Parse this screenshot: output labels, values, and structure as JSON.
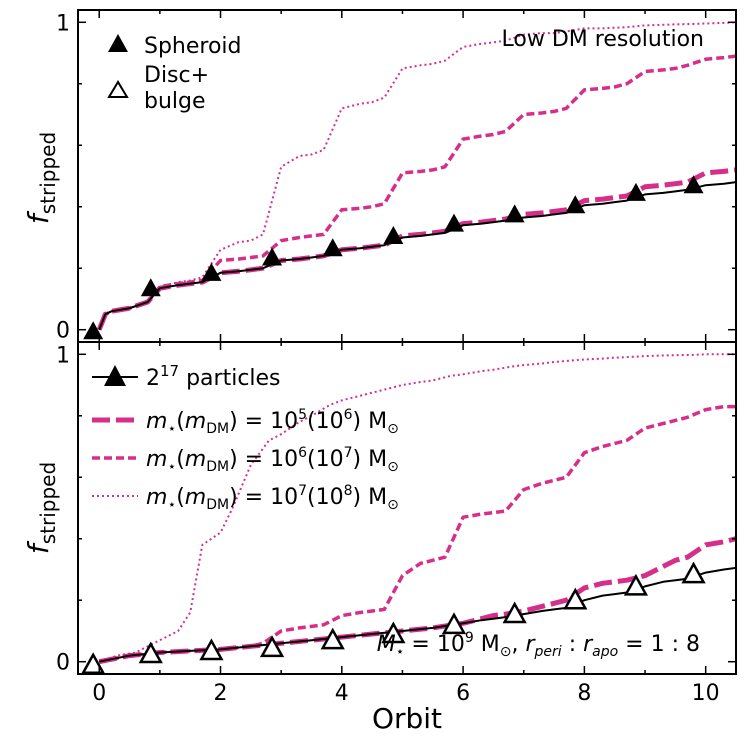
{
  "colors": {
    "magenta": "#d62f8a",
    "black": "#000000"
  },
  "chart_data": [
    {
      "type": "line",
      "panel": "top",
      "ylabel": "f",
      "ylabel_sub": "stripped",
      "xlim": [
        -0.35,
        10.5
      ],
      "ylim": [
        -0.04,
        1.04
      ],
      "yticks": [
        {
          "v": 0,
          "label": "0"
        },
        {
          "v": 1,
          "label": "1"
        }
      ],
      "yminor": [
        0.2,
        0.4,
        0.6,
        0.8
      ],
      "annotation": "Low DM resolution",
      "legend_spheroid": "Spheroid",
      "legend_disc_line1": "Disc+",
      "legend_disc_line2": "bulge",
      "series": [
        {
          "name": "dotted_1e7",
          "style": "dotted",
          "x": [
            0.0,
            0.1,
            0.2,
            0.5,
            0.8,
            1.0,
            1.3,
            1.5,
            1.7,
            2.0,
            2.3,
            2.5,
            2.7,
            3.0,
            3.3,
            3.5,
            3.7,
            4.0,
            4.3,
            4.5,
            4.7,
            5.0,
            5.3,
            5.5,
            5.7,
            6.0,
            6.3,
            6.5,
            6.7,
            7.0,
            7.3,
            7.5,
            7.7,
            8.0,
            8.3,
            8.5,
            8.7,
            9.0,
            9.3,
            9.5,
            9.7,
            10.0,
            10.3,
            10.5
          ],
          "y": [
            0.0,
            0.05,
            0.06,
            0.07,
            0.09,
            0.14,
            0.155,
            0.16,
            0.17,
            0.26,
            0.285,
            0.29,
            0.31,
            0.53,
            0.565,
            0.57,
            0.585,
            0.72,
            0.735,
            0.74,
            0.755,
            0.85,
            0.86,
            0.865,
            0.875,
            0.92,
            0.93,
            0.935,
            0.94,
            0.96,
            0.965,
            0.965,
            0.97,
            0.98,
            0.98,
            0.982,
            0.984,
            0.99,
            0.992,
            0.993,
            0.994,
            0.996,
            0.998,
            1.0
          ]
        },
        {
          "name": "dashed_1e6",
          "style": "dashed",
          "x": [
            0.0,
            0.1,
            0.2,
            0.5,
            0.8,
            1.0,
            1.3,
            1.5,
            1.7,
            2.0,
            2.3,
            2.5,
            2.7,
            3.0,
            3.3,
            3.5,
            3.7,
            4.0,
            4.3,
            4.5,
            4.7,
            5.0,
            5.3,
            5.5,
            5.7,
            6.0,
            6.3,
            6.5,
            6.7,
            7.0,
            7.3,
            7.5,
            7.7,
            8.0,
            8.3,
            8.5,
            8.7,
            9.0,
            9.3,
            9.5,
            9.7,
            10.0,
            10.3,
            10.5
          ],
          "y": [
            0.0,
            0.05,
            0.06,
            0.07,
            0.09,
            0.14,
            0.15,
            0.155,
            0.16,
            0.225,
            0.23,
            0.235,
            0.24,
            0.29,
            0.3,
            0.305,
            0.31,
            0.39,
            0.395,
            0.4,
            0.41,
            0.51,
            0.515,
            0.52,
            0.53,
            0.62,
            0.63,
            0.635,
            0.645,
            0.7,
            0.705,
            0.71,
            0.72,
            0.78,
            0.785,
            0.79,
            0.8,
            0.84,
            0.845,
            0.85,
            0.86,
            0.88,
            0.885,
            0.89
          ]
        },
        {
          "name": "longdash_1e5",
          "style": "longdash",
          "x": [
            0.0,
            0.1,
            0.2,
            0.5,
            0.8,
            1.0,
            1.3,
            1.5,
            1.7,
            2.0,
            2.3,
            2.5,
            2.7,
            3.0,
            3.3,
            3.5,
            3.7,
            4.0,
            4.3,
            4.5,
            4.7,
            5.0,
            5.3,
            5.5,
            5.7,
            6.0,
            6.3,
            6.5,
            6.7,
            7.0,
            7.3,
            7.5,
            7.7,
            8.0,
            8.3,
            8.5,
            8.7,
            9.0,
            9.3,
            9.5,
            9.7,
            10.0,
            10.3,
            10.5
          ],
          "y": [
            0.0,
            0.05,
            0.06,
            0.07,
            0.09,
            0.135,
            0.145,
            0.15,
            0.155,
            0.185,
            0.19,
            0.195,
            0.2,
            0.225,
            0.23,
            0.235,
            0.24,
            0.26,
            0.265,
            0.27,
            0.275,
            0.305,
            0.31,
            0.315,
            0.32,
            0.345,
            0.35,
            0.355,
            0.36,
            0.375,
            0.38,
            0.385,
            0.39,
            0.42,
            0.425,
            0.43,
            0.435,
            0.465,
            0.47,
            0.475,
            0.48,
            0.51,
            0.515,
            0.52
          ]
        },
        {
          "name": "solid_2e17",
          "style": "solid",
          "x": [
            0.0,
            0.1,
            0.2,
            0.5,
            0.8,
            1.0,
            1.3,
            1.5,
            1.7,
            2.0,
            2.3,
            2.5,
            2.7,
            3.0,
            3.3,
            3.5,
            3.7,
            4.0,
            4.3,
            4.5,
            4.7,
            5.0,
            5.3,
            5.5,
            5.7,
            6.0,
            6.3,
            6.5,
            6.7,
            7.0,
            7.3,
            7.5,
            7.7,
            8.0,
            8.3,
            8.5,
            8.7,
            9.0,
            9.3,
            9.5,
            9.7,
            10.0,
            10.3,
            10.5
          ],
          "y": [
            0.0,
            0.05,
            0.06,
            0.07,
            0.09,
            0.135,
            0.145,
            0.15,
            0.155,
            0.185,
            0.19,
            0.195,
            0.2,
            0.225,
            0.23,
            0.235,
            0.24,
            0.26,
            0.265,
            0.27,
            0.275,
            0.3,
            0.305,
            0.31,
            0.315,
            0.34,
            0.345,
            0.35,
            0.355,
            0.365,
            0.37,
            0.375,
            0.38,
            0.405,
            0.41,
            0.415,
            0.42,
            0.44,
            0.445,
            0.45,
            0.455,
            0.47,
            0.475,
            0.48
          ]
        }
      ],
      "markers": {
        "style": "filled",
        "x": [
          -0.1,
          0.85,
          1.85,
          2.85,
          3.85,
          4.85,
          5.85,
          6.85,
          7.85,
          8.85,
          9.8
        ],
        "y": [
          -0.005,
          0.135,
          0.185,
          0.235,
          0.265,
          0.305,
          0.345,
          0.375,
          0.405,
          0.445,
          0.47
        ]
      }
    },
    {
      "type": "line",
      "panel": "bottom",
      "xlabel": "Orbit",
      "ylabel": "f",
      "ylabel_sub": "stripped",
      "xlim": [
        -0.35,
        10.5
      ],
      "ylim": [
        -0.04,
        1.04
      ],
      "xticks": [
        {
          "v": 0,
          "label": "0"
        },
        {
          "v": 2,
          "label": "2"
        },
        {
          "v": 4,
          "label": "4"
        },
        {
          "v": 6,
          "label": "6"
        },
        {
          "v": 8,
          "label": "8"
        },
        {
          "v": 10,
          "label": "10"
        }
      ],
      "xminor": [
        1,
        3,
        5,
        7,
        9
      ],
      "yticks": [
        {
          "v": 0,
          "label": "0"
        },
        {
          "v": 1,
          "label": "1"
        }
      ],
      "yminor": [
        0.2,
        0.4,
        0.6,
        0.8
      ],
      "annotation": "M⋆ = 10⁹ M⊙, r_peri : r_apo = 1 : 8",
      "legend": [
        {
          "label": "2¹⁷ particles",
          "style": "solid"
        },
        {
          "label": "m⋆(m_DM) = 10⁵(10⁶) M⊙",
          "style": "longdash"
        },
        {
          "label": "m⋆(m_DM) = 10⁶(10⁷) M⊙",
          "style": "dashed"
        },
        {
          "label": "m⋆(m_DM) = 10⁷(10⁸) M⊙",
          "style": "dotted"
        }
      ],
      "series": [
        {
          "name": "dotted_1e7",
          "style": "dotted",
          "x": [
            0.0,
            0.3,
            0.6,
            1.0,
            1.3,
            1.5,
            1.7,
            2.0,
            2.2,
            2.5,
            2.8,
            3.0,
            3.3,
            3.5,
            3.8,
            4.0,
            4.3,
            4.5,
            4.8,
            5.0,
            5.3,
            5.5,
            5.8,
            6.0,
            6.3,
            6.5,
            6.8,
            7.0,
            7.3,
            7.5,
            7.8,
            8.0,
            8.3,
            8.5,
            8.8,
            9.0,
            9.3,
            9.5,
            9.8,
            10.0,
            10.5
          ],
          "y": [
            0.0,
            0.02,
            0.03,
            0.07,
            0.1,
            0.16,
            0.38,
            0.42,
            0.5,
            0.64,
            0.72,
            0.74,
            0.78,
            0.8,
            0.835,
            0.85,
            0.865,
            0.875,
            0.89,
            0.9,
            0.91,
            0.915,
            0.93,
            0.935,
            0.945,
            0.95,
            0.96,
            0.965,
            0.97,
            0.975,
            0.98,
            0.983,
            0.986,
            0.989,
            0.992,
            0.994,
            0.996,
            0.997,
            0.998,
            1.0,
            1.0
          ]
        },
        {
          "name": "dashed_1e6",
          "style": "dashed",
          "x": [
            0.0,
            0.5,
            1.0,
            1.5,
            2.0,
            2.5,
            2.7,
            3.0,
            3.3,
            3.5,
            3.7,
            4.0,
            4.3,
            4.5,
            4.7,
            5.0,
            5.3,
            5.5,
            5.7,
            6.0,
            6.3,
            6.5,
            6.7,
            7.0,
            7.3,
            7.5,
            7.7,
            8.0,
            8.3,
            8.5,
            8.7,
            9.0,
            9.3,
            9.5,
            9.7,
            10.0,
            10.3,
            10.5
          ],
          "y": [
            0.0,
            0.02,
            0.03,
            0.035,
            0.04,
            0.05,
            0.06,
            0.1,
            0.11,
            0.115,
            0.12,
            0.15,
            0.16,
            0.165,
            0.17,
            0.28,
            0.32,
            0.33,
            0.34,
            0.47,
            0.48,
            0.485,
            0.49,
            0.56,
            0.58,
            0.59,
            0.6,
            0.68,
            0.7,
            0.71,
            0.72,
            0.76,
            0.775,
            0.785,
            0.795,
            0.82,
            0.83,
            0.83
          ]
        },
        {
          "name": "longdash_1e5",
          "style": "longdash",
          "x": [
            0.0,
            0.5,
            1.0,
            1.5,
            2.0,
            2.5,
            3.0,
            3.5,
            4.0,
            4.5,
            5.0,
            5.5,
            6.0,
            6.3,
            6.5,
            6.7,
            7.0,
            7.3,
            7.5,
            7.7,
            8.0,
            8.3,
            8.5,
            8.7,
            9.0,
            9.3,
            9.5,
            9.7,
            10.0,
            10.3,
            10.5
          ],
          "y": [
            0.0,
            0.02,
            0.03,
            0.035,
            0.04,
            0.05,
            0.06,
            0.07,
            0.08,
            0.09,
            0.1,
            0.11,
            0.125,
            0.14,
            0.15,
            0.155,
            0.165,
            0.18,
            0.19,
            0.2,
            0.24,
            0.255,
            0.26,
            0.265,
            0.28,
            0.31,
            0.33,
            0.34,
            0.38,
            0.39,
            0.4
          ]
        },
        {
          "name": "solid_2e17",
          "style": "solid",
          "x": [
            0.0,
            0.5,
            1.0,
            1.5,
            2.0,
            2.5,
            3.0,
            3.5,
            4.0,
            4.5,
            5.0,
            5.5,
            6.0,
            6.3,
            6.5,
            6.7,
            7.0,
            7.3,
            7.5,
            7.7,
            8.0,
            8.3,
            8.5,
            8.7,
            9.0,
            9.3,
            9.5,
            9.7,
            10.0,
            10.3,
            10.5
          ],
          "y": [
            0.0,
            0.02,
            0.03,
            0.035,
            0.04,
            0.05,
            0.06,
            0.07,
            0.08,
            0.09,
            0.1,
            0.11,
            0.125,
            0.135,
            0.14,
            0.145,
            0.155,
            0.165,
            0.17,
            0.175,
            0.2,
            0.215,
            0.22,
            0.225,
            0.245,
            0.26,
            0.265,
            0.27,
            0.29,
            0.3,
            0.305
          ]
        }
      ],
      "markers": {
        "style": "open",
        "x": [
          -0.1,
          0.85,
          1.85,
          2.85,
          3.85,
          4.85,
          5.85,
          6.85,
          7.85,
          8.85,
          9.8
        ],
        "y": [
          -0.01,
          0.025,
          0.035,
          0.045,
          0.07,
          0.09,
          0.12,
          0.155,
          0.2,
          0.245,
          0.285
        ]
      }
    }
  ]
}
